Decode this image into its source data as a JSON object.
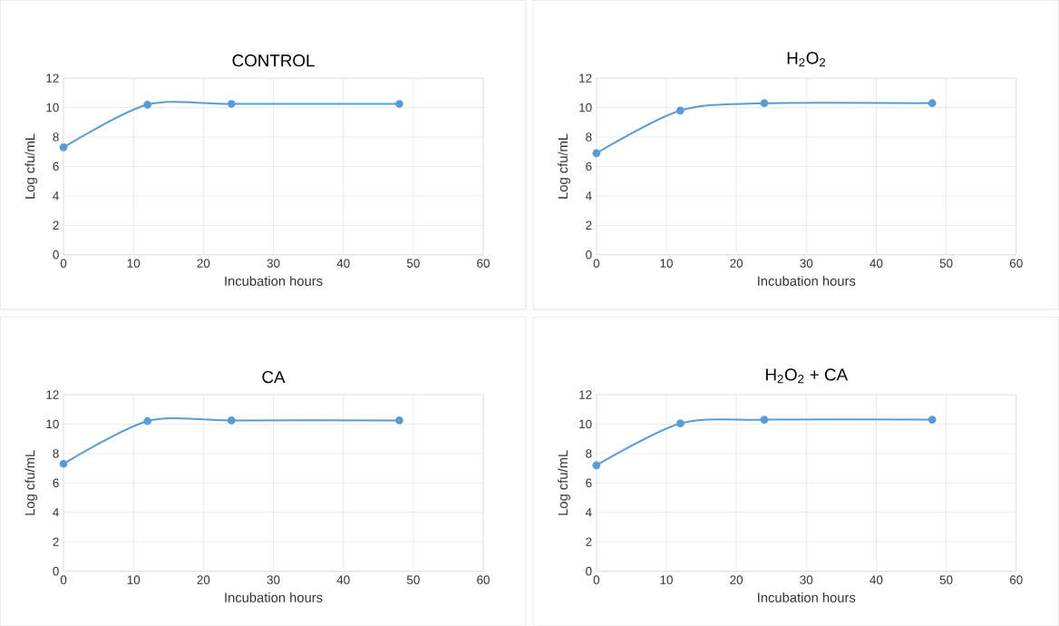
{
  "chart_data": [
    {
      "type": "line",
      "title": "CONTROL",
      "xlabel": "Incubation hours",
      "ylabel": "Log cfu/mL",
      "x": [
        0,
        12,
        24,
        48
      ],
      "values": [
        7.3,
        10.2,
        10.25,
        10.25
      ],
      "color": "#5b9bd5",
      "marker": "circle",
      "line_style": "solid",
      "grid": true,
      "xlim": [
        0,
        60
      ],
      "ylim": [
        0,
        12
      ],
      "xticks": [
        0,
        10,
        20,
        30,
        40,
        50,
        60
      ],
      "yticks": [
        0,
        2,
        4,
        6,
        8,
        10,
        12
      ]
    },
    {
      "type": "line",
      "title": "H$_{2}$O$_{2}$",
      "xlabel": "Incubation hours",
      "ylabel": "Log cfu/mL",
      "x": [
        0,
        12,
        24,
        48
      ],
      "values": [
        6.9,
        9.8,
        10.3,
        10.3
      ],
      "color": "#5b9bd5",
      "marker": "circle",
      "line_style": "solid",
      "grid": true,
      "xlim": [
        0,
        60
      ],
      "ylim": [
        0,
        12
      ],
      "xticks": [
        0,
        10,
        20,
        30,
        40,
        50,
        60
      ],
      "yticks": [
        0,
        2,
        4,
        6,
        8,
        10,
        12
      ]
    },
    {
      "type": "line",
      "title": "CA",
      "xlabel": "Incubation hours",
      "ylabel": "Log cfu/mL",
      "x": [
        0,
        12,
        24,
        48
      ],
      "values": [
        7.3,
        10.2,
        10.25,
        10.25
      ],
      "color": "#5b9bd5",
      "marker": "circle",
      "line_style": "solid",
      "grid": true,
      "xlim": [
        0,
        60
      ],
      "ylim": [
        0,
        12
      ],
      "xticks": [
        0,
        10,
        20,
        30,
        40,
        50,
        60
      ],
      "yticks": [
        0,
        2,
        4,
        6,
        8,
        10,
        12
      ]
    },
    {
      "type": "line",
      "title": "H$_{2}$O$_{2}$ + CA",
      "xlabel": "Incubation hours",
      "ylabel": "Log cfu/mL",
      "x": [
        0,
        12,
        24,
        48
      ],
      "values": [
        7.2,
        10.05,
        10.3,
        10.3
      ],
      "color": "#5b9bd5",
      "marker": "circle",
      "line_style": "solid",
      "grid": true,
      "xlim": [
        0,
        60
      ],
      "ylim": [
        0,
        12
      ],
      "xticks": [
        0,
        10,
        20,
        30,
        40,
        50,
        60
      ],
      "yticks": [
        0,
        2,
        4,
        6,
        8,
        10,
        12
      ]
    }
  ]
}
